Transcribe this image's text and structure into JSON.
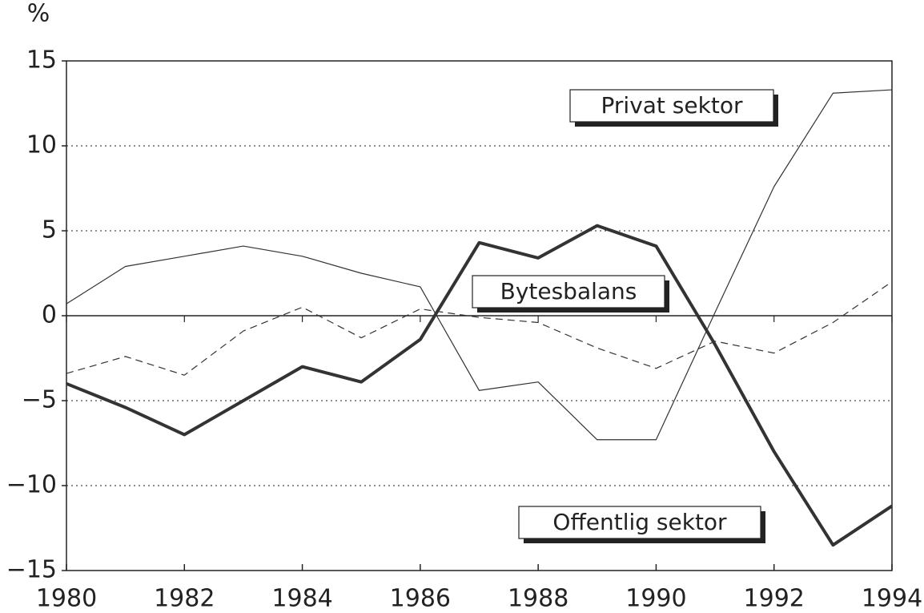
{
  "chart_data": {
    "type": "line",
    "y_label": "%",
    "x": [
      1980,
      1981,
      1982,
      1983,
      1984,
      1985,
      1986,
      1987,
      1988,
      1989,
      1990,
      1991,
      1992,
      1993,
      1994
    ],
    "xlim": [
      1980,
      1994
    ],
    "xticks": [
      1980,
      1982,
      1984,
      1986,
      1988,
      1990,
      1992,
      1994
    ],
    "ylim": [
      -15,
      15
    ],
    "yticks": [
      {
        "value": -15,
        "label": "−15"
      },
      {
        "value": -10,
        "label": "−10"
      },
      {
        "value": -5,
        "label": "−5"
      },
      0,
      5,
      10,
      15
    ],
    "grid": true,
    "series": [
      {
        "name": "Privat sektor",
        "color": "#333333",
        "style": "thin",
        "values": [
          0.7,
          2.9,
          3.5,
          4.1,
          3.5,
          2.5,
          1.7,
          -4.4,
          -3.9,
          -7.3,
          -7.3,
          0.2,
          7.6,
          13.1,
          13.3
        ]
      },
      {
        "name": "Bytesbalans",
        "color": "#333333",
        "style": "dashed",
        "values": [
          -3.4,
          -2.4,
          -3.5,
          -0.9,
          0.5,
          -1.3,
          0.4,
          -0.1,
          -0.4,
          -1.9,
          -3.1,
          -1.5,
          -2.2,
          -0.4,
          2.0
        ]
      },
      {
        "name": "Offentlig sektor",
        "color": "#333333",
        "style": "thick",
        "values": [
          -4.0,
          -5.4,
          -7.0,
          -5.0,
          -3.0,
          -3.9,
          -1.4,
          4.3,
          3.4,
          5.3,
          4.1,
          -1.7,
          -8.0,
          -13.5,
          -11.2
        ]
      }
    ]
  }
}
